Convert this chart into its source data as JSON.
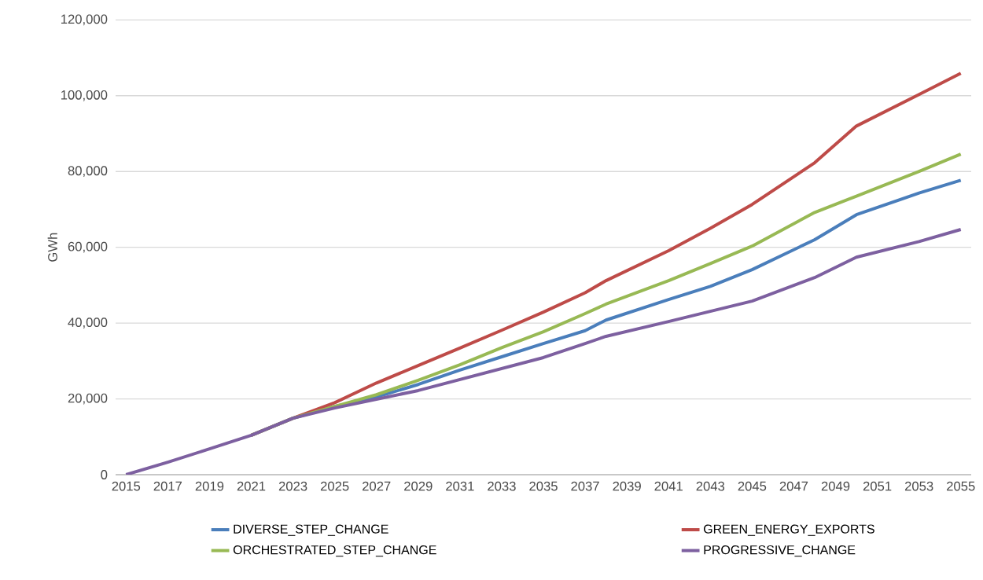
{
  "chart_data": {
    "type": "line",
    "ylabel": "GWh",
    "x": [
      2015,
      2017,
      2019,
      2021,
      2023,
      2025,
      2027,
      2029,
      2031,
      2033,
      2035,
      2037,
      2038,
      2041,
      2043,
      2045,
      2048,
      2050,
      2053,
      2055
    ],
    "series": [
      {
        "name": "DIVERSE_STEP_CHANGE",
        "color": "#4a7ebb",
        "values": [
          null,
          null,
          null,
          10400,
          14900,
          18000,
          20500,
          23800,
          27600,
          31100,
          34600,
          38000,
          40800,
          46200,
          49700,
          54100,
          62000,
          68600,
          74300,
          77700
        ]
      },
      {
        "name": "GREEN_ENERGY_EXPORTS",
        "color": "#be4b48",
        "values": [
          null,
          null,
          null,
          10400,
          14900,
          19000,
          24200,
          28800,
          33400,
          38100,
          42900,
          48000,
          51200,
          59100,
          65000,
          71300,
          82300,
          92000,
          100300,
          105900
        ]
      },
      {
        "name": "ORCHESTRATED_STEP_CHANGE",
        "color": "#98b954",
        "values": [
          null,
          null,
          null,
          10400,
          14900,
          18000,
          21100,
          24900,
          29000,
          33500,
          37700,
          42500,
          45000,
          51200,
          55700,
          60300,
          69200,
          73500,
          80000,
          84600
        ]
      },
      {
        "name": "PROGRESSIVE_CHANGE",
        "color": "#7d60a0",
        "values": [
          0,
          3300,
          6800,
          10400,
          14900,
          17600,
          19900,
          22200,
          25100,
          28000,
          30900,
          34600,
          36500,
          40400,
          43100,
          45800,
          52000,
          57400,
          61500,
          64700
        ]
      }
    ],
    "xlim": [
      2014.5,
      2055.5
    ],
    "ylim": [
      0,
      120000
    ],
    "xticks": [
      2015,
      2017,
      2019,
      2021,
      2023,
      2025,
      2027,
      2029,
      2031,
      2033,
      2035,
      2037,
      2039,
      2041,
      2043,
      2045,
      2047,
      2049,
      2051,
      2053,
      2055
    ],
    "yticks": [
      0,
      {
        "value": 20000,
        "label": "20,000"
      },
      {
        "value": 40000,
        "label": "40,000"
      },
      {
        "value": 60000,
        "label": "60,000"
      },
      {
        "value": 80000,
        "label": "80,000"
      },
      {
        "value": 100000,
        "label": "100,000"
      },
      {
        "value": 120000,
        "label": "120,000"
      }
    ],
    "grid": "y",
    "legend": "bottom",
    "marker": "none",
    "line_style": "solid"
  }
}
